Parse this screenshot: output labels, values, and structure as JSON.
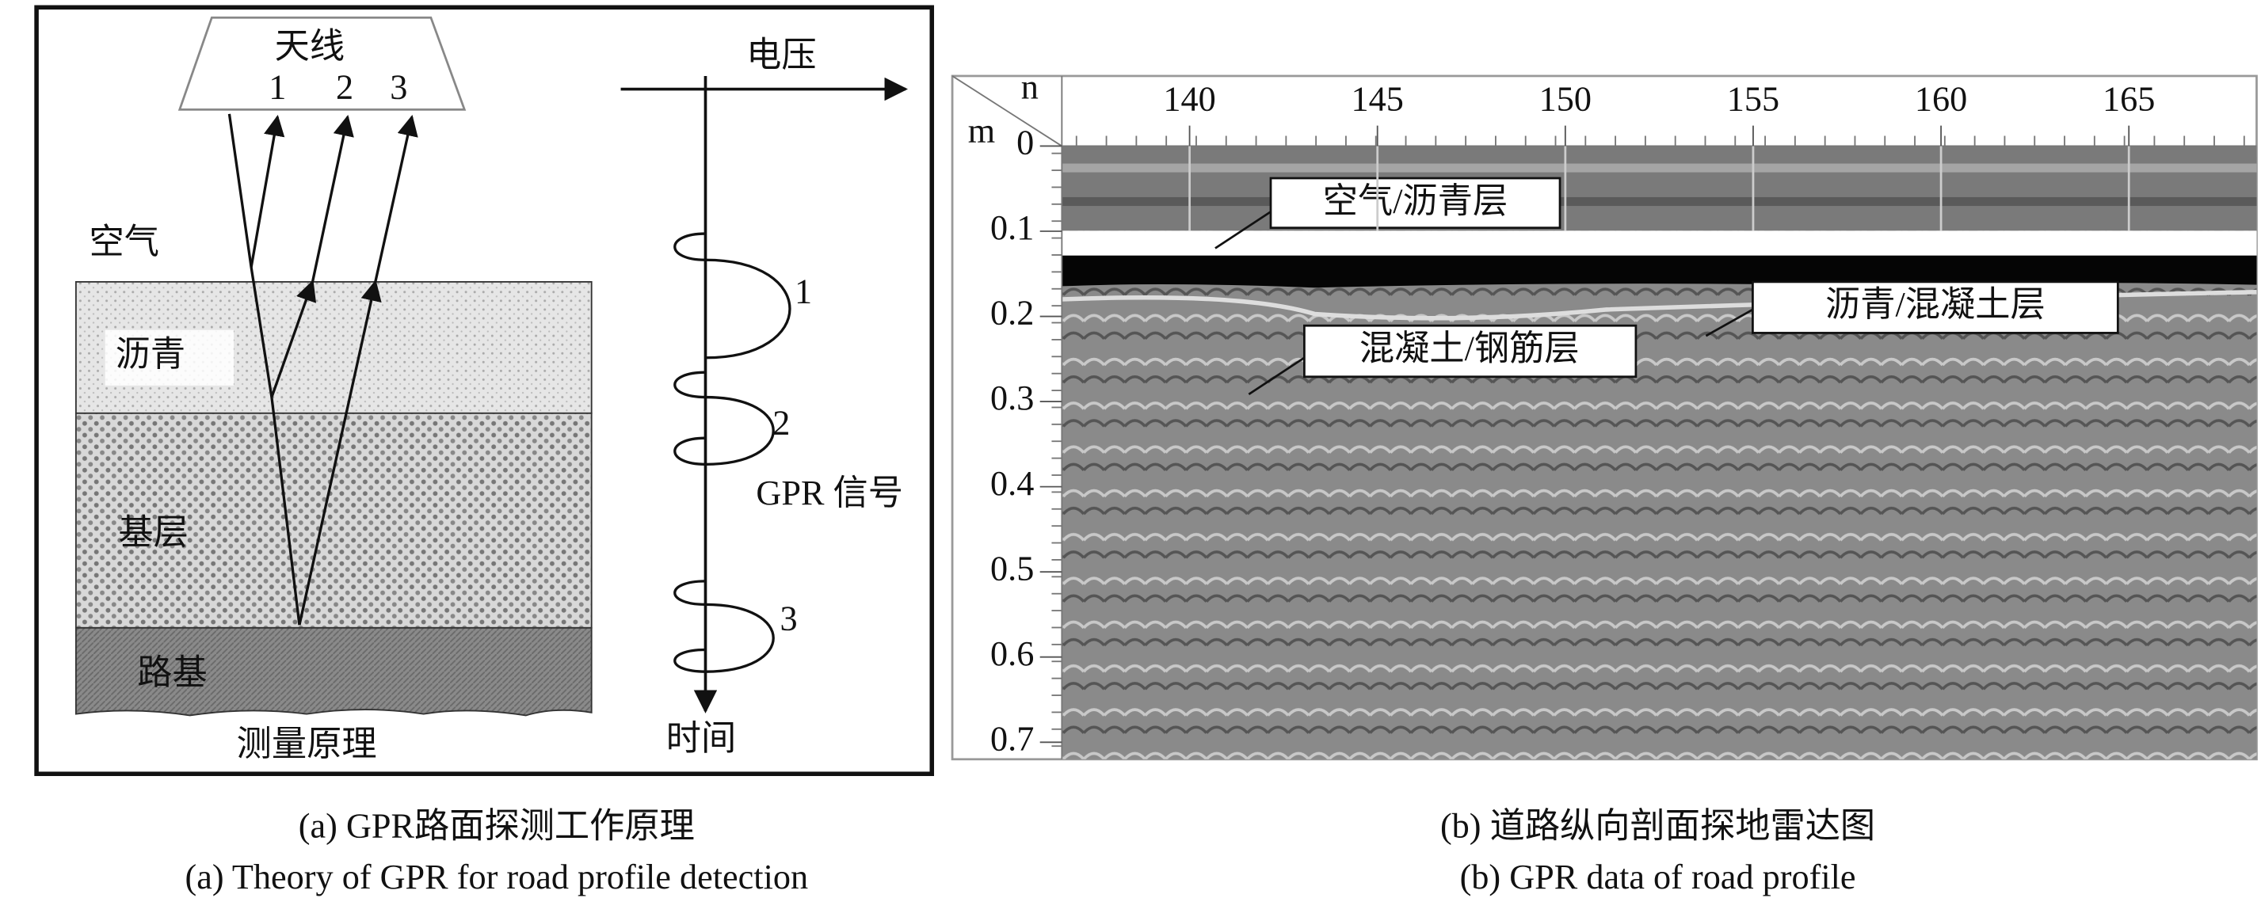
{
  "panel_a": {
    "antenna": "天线",
    "antenna_ports": [
      "1",
      "2",
      "3"
    ],
    "layers": [
      "空气",
      "沥青",
      "基层",
      "路基"
    ],
    "bottom_label": "测量原理",
    "voltage_label": "电压",
    "time_label": "时间",
    "signal_label": "GPR 信号",
    "pulse_labels": [
      "1",
      "2",
      "3"
    ],
    "caption_cn": "(a) GPR路面探测工作原理",
    "caption_en": "(a) Theory of GPR for road profile detection"
  },
  "panel_b": {
    "x_label": "n",
    "y_label": "m",
    "xlim": [
      136.6,
      168.4
    ],
    "xticks": [
      140,
      145,
      150,
      155,
      160,
      165
    ],
    "ylim": [
      0,
      0.72
    ],
    "yticks": [
      0,
      0.1,
      0.2,
      0.3,
      0.4,
      0.5,
      0.6,
      0.7
    ],
    "annotations": [
      "空气/沥青层",
      "沥青/混凝土层",
      "混凝土/钢筋层"
    ],
    "caption_cn": "(b) 道路纵向剖面探地雷达图",
    "caption_en": "(b) GPR data of road profile"
  }
}
